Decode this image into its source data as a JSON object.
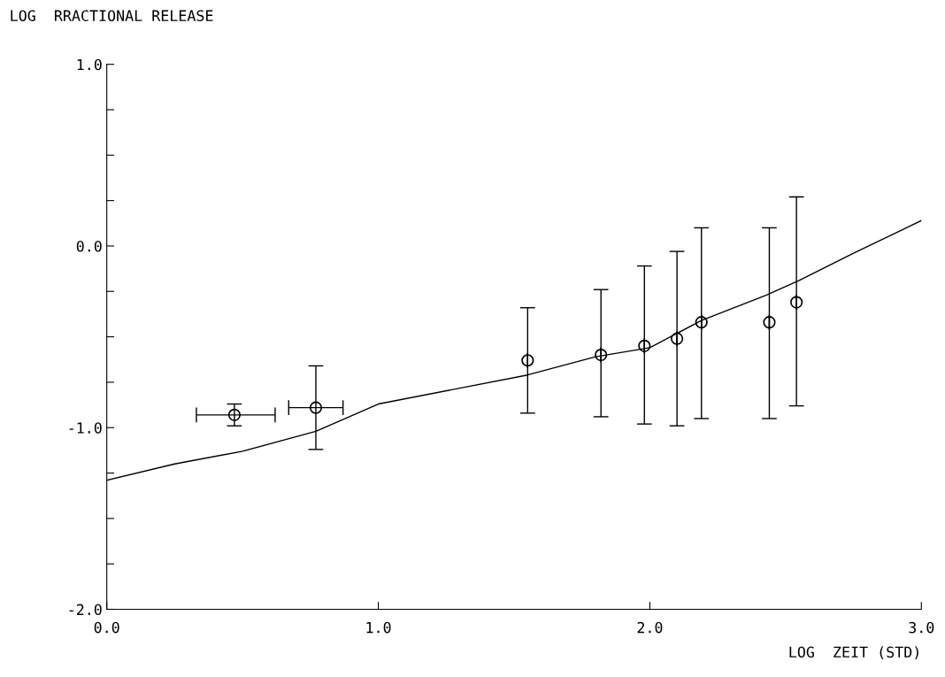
{
  "chart_data": {
    "type": "scatter",
    "xlabel": "LOG  ZEIT (STD)",
    "ylabel": "LOG  RRACTIONAL RELEASE",
    "xlim": [
      0,
      3
    ],
    "ylim": [
      -2,
      1
    ],
    "xticks": [
      {
        "value": 0,
        "label": "0.0"
      },
      {
        "value": 1,
        "label": "1.0"
      },
      {
        "value": 2,
        "label": "2.0"
      },
      {
        "value": 3,
        "label": "3.0"
      }
    ],
    "yticks": [
      {
        "value": -2,
        "label": "-2.0"
      },
      {
        "value": -1.75,
        "label": null
      },
      {
        "value": -1.5,
        "label": null
      },
      {
        "value": -1.25,
        "label": null
      },
      {
        "value": -1,
        "label": "-1.0"
      },
      {
        "value": -0.75,
        "label": null
      },
      {
        "value": -0.5,
        "label": null
      },
      {
        "value": -0.25,
        "label": null
      },
      {
        "value": 0,
        "label": "0.0"
      },
      {
        "value": 0.25,
        "label": null
      },
      {
        "value": 0.5,
        "label": null
      },
      {
        "value": 0.75,
        "label": null
      },
      {
        "value": 1,
        "label": "1.0"
      }
    ],
    "grid": false,
    "series": [
      {
        "marker": "circle",
        "color": "#000000",
        "x": [
          0.47,
          0.77,
          1.55,
          1.82,
          1.98,
          2.1,
          2.19,
          2.44,
          2.54
        ],
        "values": [
          -0.93,
          -0.89,
          -0.63,
          -0.6,
          -0.55,
          -0.51,
          -0.42,
          -0.42,
          -0.31
        ],
        "errors": [
          [
            -0.99,
            -0.87
          ],
          [
            -1.12,
            -0.66
          ],
          [
            -0.92,
            -0.34
          ],
          [
            -0.94,
            -0.24
          ],
          [
            -0.98,
            -0.11
          ],
          [
            -0.99,
            -0.03
          ],
          [
            -0.95,
            0.1
          ],
          [
            -0.95,
            0.1
          ],
          [
            -0.88,
            0.27
          ]
        ],
        "xerrors": [
          [
            0.33,
            0.62
          ],
          [
            0.67,
            0.87
          ],
          null,
          null,
          null,
          null,
          null,
          null,
          null
        ]
      },
      {
        "type": "line",
        "color": "#000000",
        "x": [
          0,
          0.25,
          0.5,
          0.77,
          1.0,
          1.55,
          1.8,
          2.0,
          2.19,
          2.43,
          2.55,
          2.75,
          3.0
        ],
        "values": [
          -1.29,
          -1.2,
          -1.13,
          -1.02,
          -0.87,
          -0.71,
          -0.61,
          -0.56,
          -0.41,
          -0.27,
          -0.19,
          -0.04,
          0.14
        ]
      }
    ]
  }
}
